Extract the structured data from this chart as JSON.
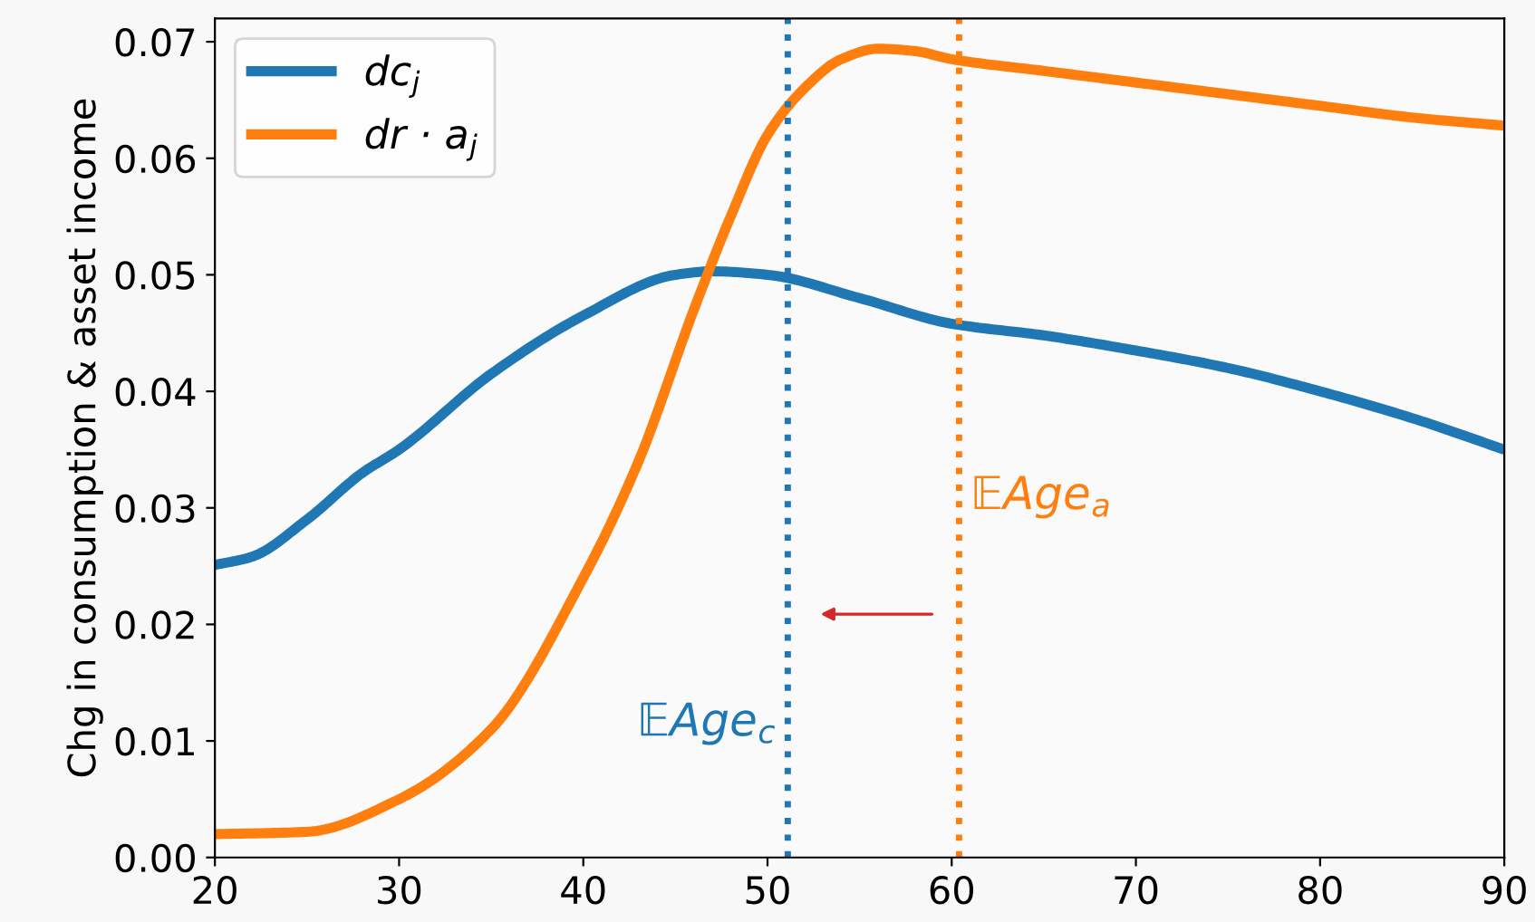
{
  "chart_data": {
    "type": "line",
    "ylabel": "Chg in consumption & asset income",
    "series": [
      {
        "name": "dc$_{j}$",
        "color": "#1f77b4",
        "x": [
          20,
          22,
          25,
          28,
          30,
          35,
          40,
          45,
          47,
          50,
          55,
          60,
          65,
          70,
          75,
          80,
          85,
          90
        ],
        "values": [
          0.0251,
          0.0258,
          0.029,
          0.033,
          0.035,
          0.0415,
          0.0465,
          0.05,
          0.0503,
          0.05,
          0.048,
          0.0458,
          0.0448,
          0.0435,
          0.042,
          0.04,
          0.0377,
          0.035
        ]
      },
      {
        "name": "dr · a$_{j}$",
        "color": "#ff7f0e",
        "x": [
          20,
          25,
          30,
          35,
          40,
          43,
          46,
          48,
          50,
          52,
          54,
          56,
          58,
          60,
          65,
          70,
          75,
          80,
          85,
          90
        ],
        "values": [
          0.002,
          0.0022,
          0.005,
          0.011,
          0.024,
          0.034,
          0.047,
          0.055,
          0.062,
          0.066,
          0.0685,
          0.0694,
          0.0692,
          0.0685,
          0.0675,
          0.0665,
          0.0655,
          0.0645,
          0.0635,
          0.0628
        ]
      }
    ],
    "ref_lines": [
      {
        "axis": "x",
        "value": 51.1,
        "color": "#1f77b4",
        "line_style": "dotted"
      },
      {
        "axis": "x",
        "value": 60.4,
        "color": "#ff7f0e",
        "line_style": "dotted"
      }
    ],
    "annotations": [
      "𝔼Age$_{c}$",
      "𝔼Age$_{a}$"
    ],
    "xlim": [
      20,
      90
    ],
    "xticks": [
      20,
      30,
      40,
      50,
      60,
      70,
      80,
      90
    ],
    "ylim": [
      0,
      0.072
    ],
    "yticks": [
      {
        "value": 0,
        "label": "0.00"
      },
      {
        "value": 0.01,
        "label": "0.01"
      },
      {
        "value": 0.02,
        "label": "0.02"
      },
      {
        "value": 0.03,
        "label": "0.03"
      },
      {
        "value": 0.04,
        "label": "0.04"
      },
      {
        "value": 0.05,
        "label": "0.05"
      },
      {
        "value": 0.06,
        "label": "0.06"
      },
      {
        "value": 0.07,
        "label": "0.07"
      }
    ],
    "grid": false,
    "legend": "top left",
    "line_style": "solid",
    "marker": "none"
  }
}
